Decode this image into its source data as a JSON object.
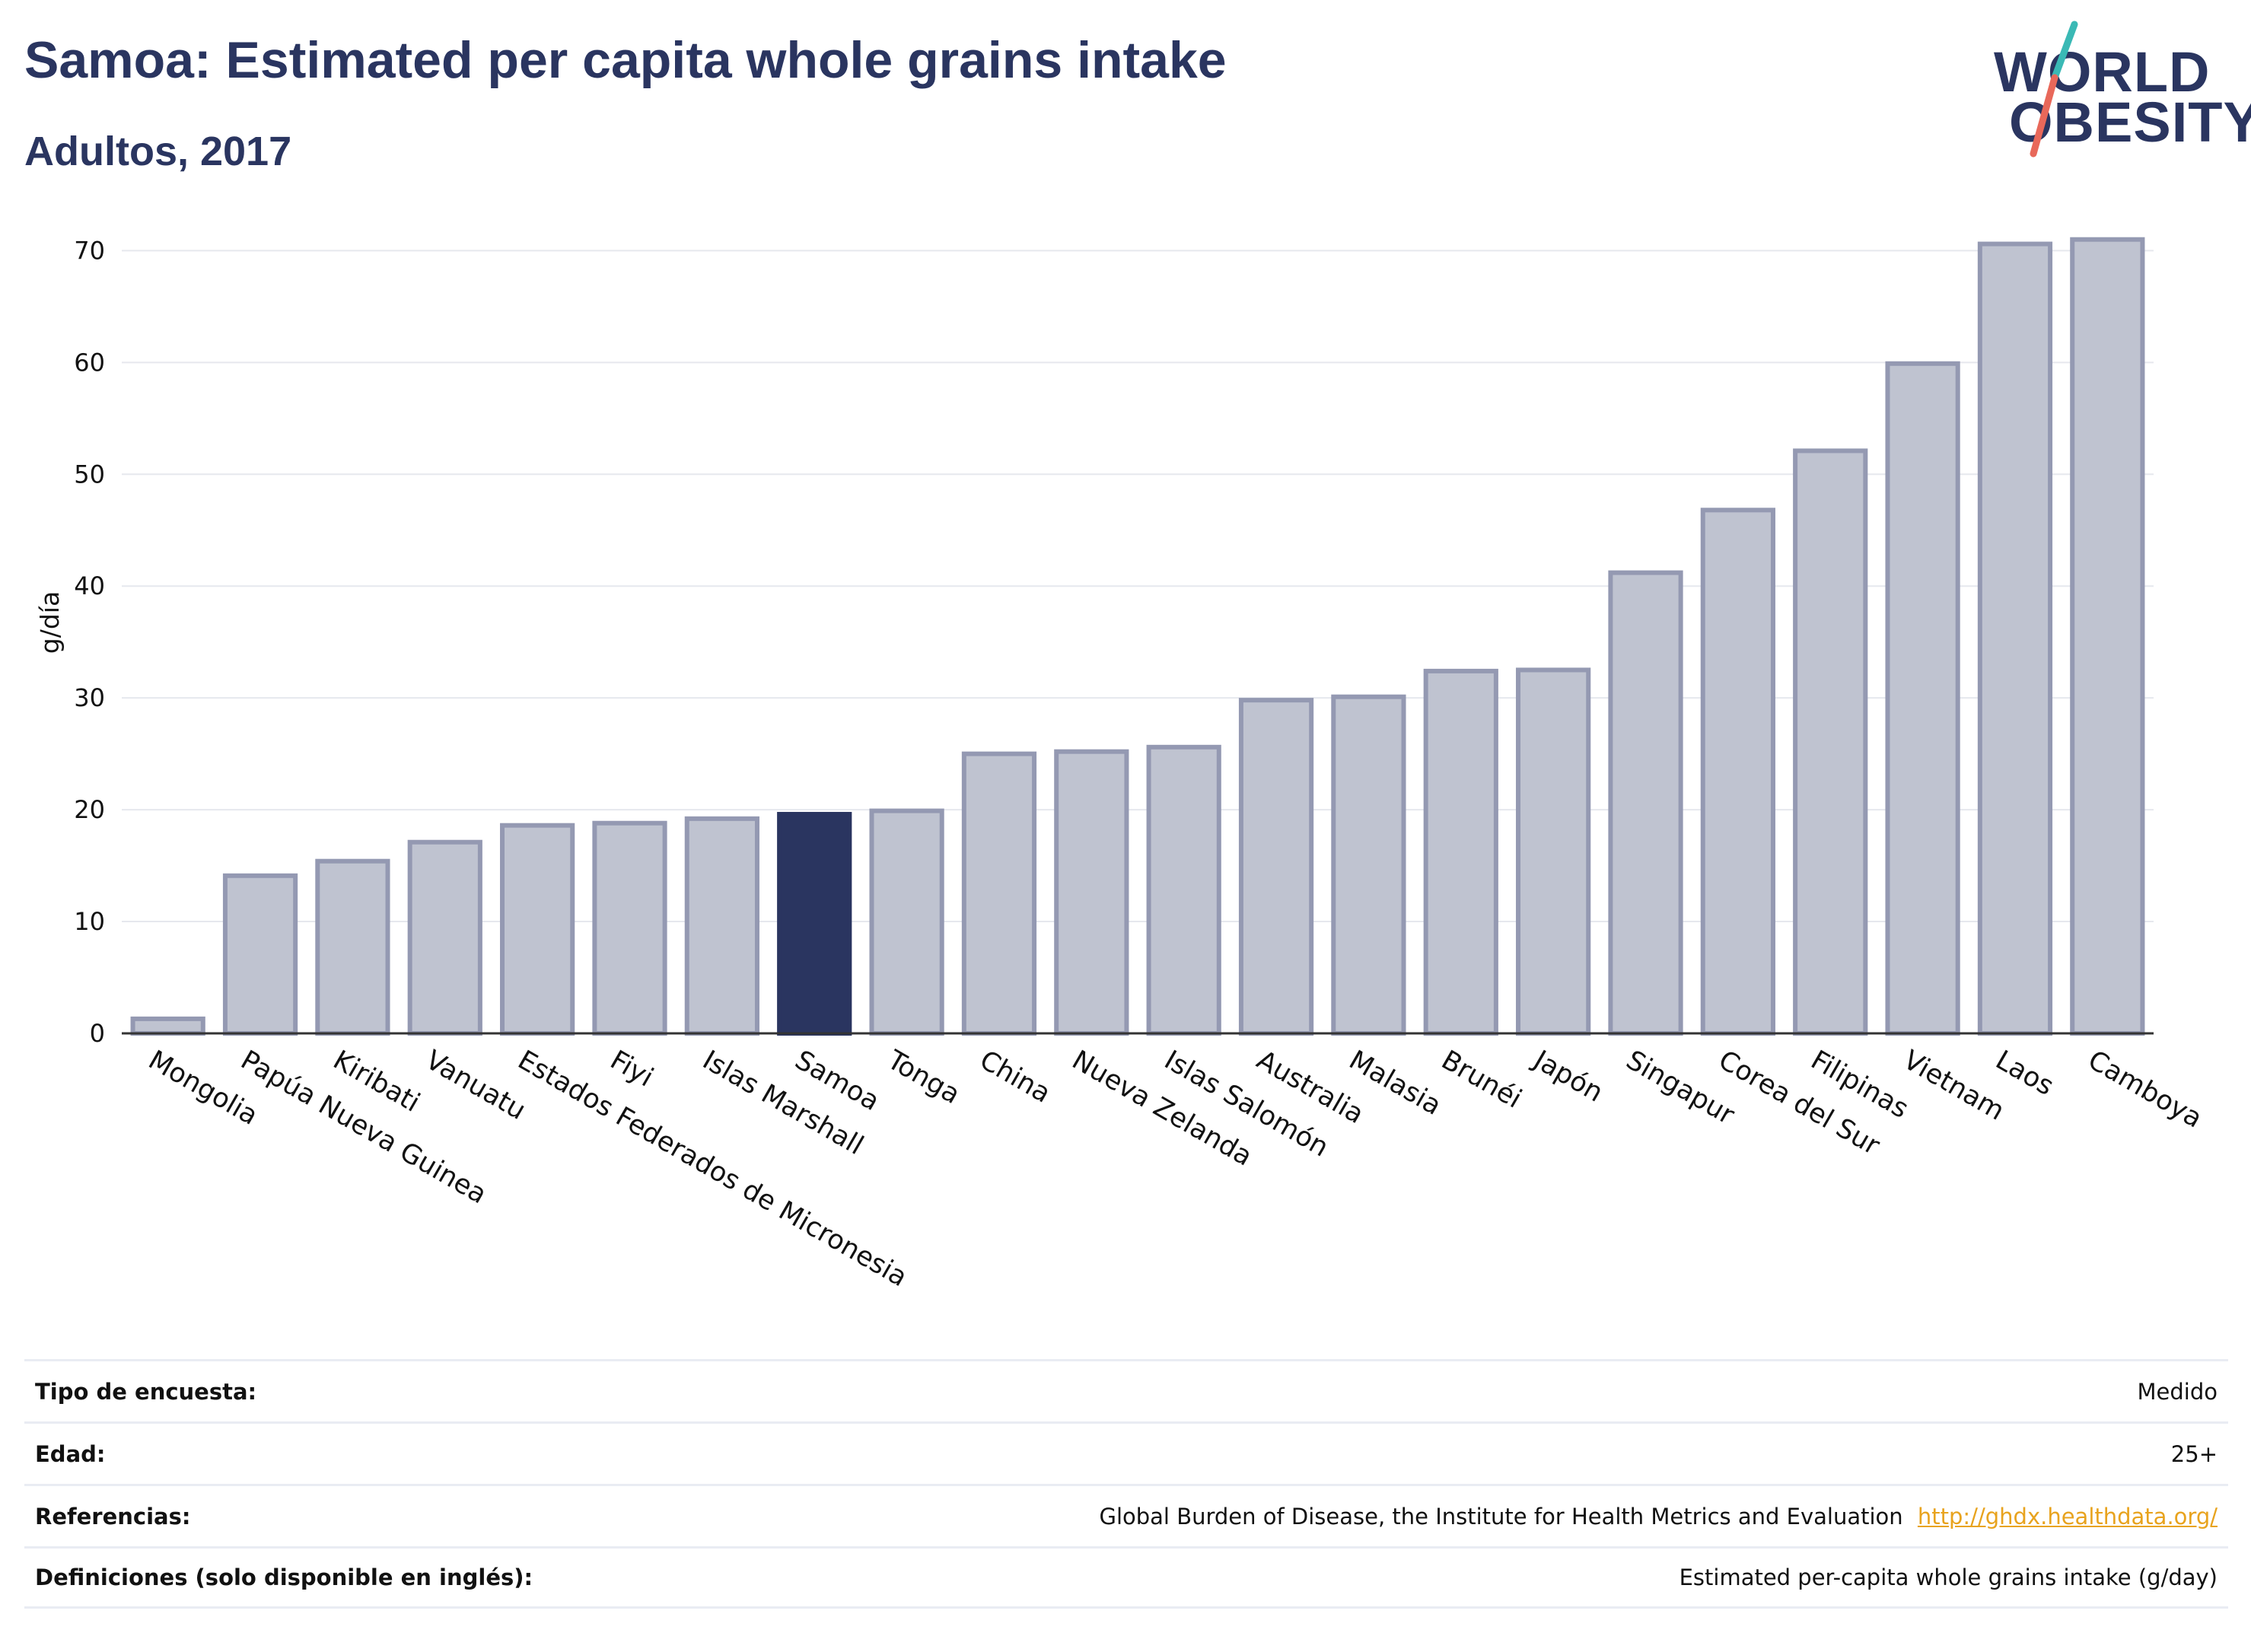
{
  "header": {
    "title": "Samoa: Estimated per capita whole grains intake",
    "subtitle": "Adultos, 2017"
  },
  "logo": {
    "line1": "WORLD",
    "line2": "OBESITY",
    "colors": {
      "text": "#2a3560",
      "slash_top": "#3ab9b5",
      "slash_bottom": "#e8685a"
    }
  },
  "chart_data": {
    "type": "bar",
    "ylabel": "g/día",
    "ylim": [
      0,
      72
    ],
    "yticks": [
      0,
      10,
      20,
      30,
      40,
      50,
      60,
      70
    ],
    "grid": true,
    "categories": [
      "Mongolia",
      "Papúa Nueva Guinea",
      "Kiribati",
      "Vanuatu",
      "Estados Federados de Micronesia",
      "Fiyi",
      "Islas Marshall",
      "Samoa",
      "Tonga",
      "China",
      "Nueva Zelanda",
      "Islas Salomón",
      "Australia",
      "Malasia",
      "Brunéi",
      "Japón",
      "Singapur",
      "Corea del Sur",
      "Filipinas",
      "Vietnam",
      "Laos",
      "Camboya"
    ],
    "values": [
      1.3,
      14.1,
      15.4,
      17.1,
      18.6,
      18.8,
      19.2,
      19.6,
      19.9,
      25.0,
      25.2,
      25.6,
      29.8,
      30.1,
      32.4,
      32.5,
      41.2,
      46.8,
      52.1,
      59.9,
      70.6,
      71.0
    ],
    "highlight": "Samoa",
    "colors": {
      "bar": "#bfc3d0",
      "bar_border": "#9499b2",
      "highlight": "#2a3560",
      "grid": "#e6e8ee",
      "axis": "#333333"
    }
  },
  "meta": {
    "rows": [
      {
        "label": "Tipo de encuesta:",
        "value": "Medido"
      },
      {
        "label": "Edad:",
        "value": "25+"
      },
      {
        "label": "Referencias:",
        "value": "Global Burden of Disease, the Institute for Health Metrics and Evaluation",
        "link": "http://ghdx.healthdata.org/"
      },
      {
        "label": "Definiciones (solo disponible en inglés):",
        "value": "Estimated per-capita whole grains intake (g/day)"
      }
    ]
  }
}
